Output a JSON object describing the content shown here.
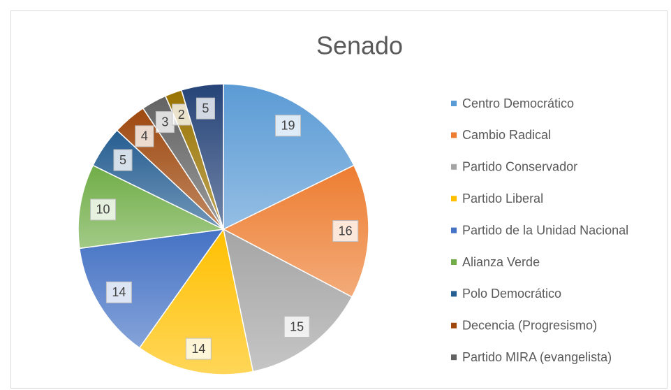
{
  "chart_data": {
    "type": "pie",
    "title": "Senado",
    "categories": [
      "Centro Democrático",
      "Cambio Radical",
      "Partido Conservador",
      "Partido Liberal",
      "Partido de la Unidad Nacional",
      "Alianza Verde",
      "Polo Democrático",
      "Decencia (Progresismo)",
      "Partido MIRA (evangelista)",
      null,
      null
    ],
    "values": [
      19,
      16,
      15,
      14,
      14,
      10,
      5,
      4,
      3,
      2,
      5
    ],
    "colors": [
      "#5b9bd5",
      "#ed7d31",
      "#a5a5a5",
      "#ffc000",
      "#4472c4",
      "#70ad47",
      "#255e91",
      "#9e480e",
      "#636363",
      "#997300",
      "#264478"
    ],
    "legend": "right"
  }
}
